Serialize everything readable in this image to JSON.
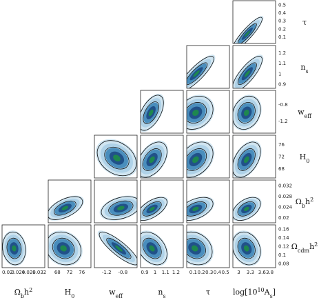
{
  "chart_data": {
    "type": "triangle-contour",
    "parameters": [
      {
        "key": "omegabh2",
        "label": "Ω_b h²",
        "ticks": [
          "0.02",
          "0.024",
          "0.028",
          "0.032"
        ],
        "range": [
          0.018,
          0.034
        ]
      },
      {
        "key": "H0",
        "label": "H_0",
        "ticks": [
          "68",
          "72",
          "76"
        ],
        "range": [
          65,
          79
        ]
      },
      {
        "key": "weff",
        "label": "w_eff",
        "ticks": [
          "-1.2",
          "-0.8"
        ],
        "range": [
          -1.5,
          -0.45
        ]
      },
      {
        "key": "ns",
        "label": "n_s",
        "ticks": [
          "0.9",
          "1",
          "1.1",
          "1.2"
        ],
        "range": [
          0.86,
          1.27
        ]
      },
      {
        "key": "tau",
        "label": "τ",
        "ticks": [
          "0.1",
          "0.2",
          "0.3",
          "0.4",
          "0.5"
        ],
        "range": [
          0.02,
          0.55
        ]
      },
      {
        "key": "logAs",
        "label": "log[10¹⁰A_s]",
        "ticks": [
          "3",
          "3.3",
          "3.6",
          "3.8"
        ],
        "range": [
          2.85,
          3.95
        ]
      }
    ],
    "row_parameters": [
      {
        "key": "tau",
        "label": "τ",
        "ticks": [
          "0.5",
          "0.4",
          "0.3",
          "0.2",
          "0.1"
        ],
        "values": [
          0.5,
          0.4,
          0.3,
          0.2,
          0.1
        ],
        "range": [
          0.02,
          0.55
        ]
      },
      {
        "key": "ns",
        "label": "n_s",
        "ticks": [
          "1.2",
          "1.1",
          "1",
          "0.9"
        ],
        "values": [
          1.2,
          1.1,
          1.0,
          0.9
        ],
        "range": [
          0.86,
          1.27
        ]
      },
      {
        "key": "weff",
        "label": "w_eff",
        "ticks": [
          "-0.8",
          "-1.2"
        ],
        "values": [
          -0.8,
          -1.2
        ],
        "range": [
          -1.5,
          -0.45
        ]
      },
      {
        "key": "H0",
        "label": "H_0",
        "ticks": [
          "76",
          "72",
          "68"
        ],
        "values": [
          76,
          72,
          68
        ],
        "range": [
          65,
          79
        ]
      },
      {
        "key": "omegabh2",
        "label": "Ω_b h²",
        "ticks": [
          "0.032",
          "0.028",
          "0.024",
          "0.02"
        ],
        "values": [
          0.032,
          0.028,
          0.024,
          0.02
        ],
        "range": [
          0.018,
          0.034
        ]
      },
      {
        "key": "omegacdmh2",
        "label": "Ω_cdm h²",
        "ticks": [
          "0.16",
          "0.14",
          "0.12",
          "0.1",
          "0.08"
        ],
        "values": [
          0.16,
          0.14,
          0.12,
          0.1,
          0.08
        ],
        "range": [
          0.07,
          0.17
        ]
      }
    ],
    "x_tick_values": {
      "omegabh2": [
        0.02,
        0.024,
        0.028,
        0.032
      ],
      "H0": [
        68,
        72,
        76
      ],
      "weff": [
        -1.2,
        -0.8
      ],
      "ns": [
        0.9,
        1.0,
        1.1,
        1.2
      ],
      "tau": [
        0.1,
        0.2,
        0.3,
        0.4,
        0.5
      ],
      "logAs": [
        3.0,
        3.3,
        3.6,
        3.8
      ]
    },
    "panels": [
      {
        "row": "tau",
        "col": "logAs",
        "center": [
          3.22,
          0.14
        ],
        "sigma": [
          0.16,
          0.085
        ],
        "corr": 0.9
      },
      {
        "row": "ns",
        "col": "tau",
        "center": [
          0.14,
          1.0
        ],
        "sigma": [
          0.09,
          0.07
        ],
        "corr": 0.85
      },
      {
        "row": "ns",
        "col": "logAs",
        "center": [
          3.22,
          1.0
        ],
        "sigma": [
          0.16,
          0.07
        ],
        "corr": 0.8
      },
      {
        "row": "weff",
        "col": "ns",
        "center": [
          0.96,
          -1.0
        ],
        "sigma": [
          0.05,
          0.18
        ],
        "corr": 0.55
      },
      {
        "row": "weff",
        "col": "tau",
        "center": [
          0.13,
          -1.0
        ],
        "sigma": [
          0.09,
          0.17
        ],
        "corr": 0.2
      },
      {
        "row": "weff",
        "col": "logAs",
        "center": [
          3.2,
          -1.0
        ],
        "sigma": [
          0.15,
          0.17
        ],
        "corr": 0.2
      },
      {
        "row": "H0",
        "col": "weff",
        "center": [
          -0.95,
          71.5
        ],
        "sigma": [
          0.2,
          2.4
        ],
        "corr": -0.3
      },
      {
        "row": "H0",
        "col": "ns",
        "center": [
          0.97,
          71.0
        ],
        "sigma": [
          0.06,
          2.4
        ],
        "corr": 0.45
      },
      {
        "row": "H0",
        "col": "tau",
        "center": [
          0.13,
          71.0
        ],
        "sigma": [
          0.09,
          2.4
        ],
        "corr": 0.35
      },
      {
        "row": "H0",
        "col": "logAs",
        "center": [
          3.2,
          71.0
        ],
        "sigma": [
          0.15,
          2.4
        ],
        "corr": 0.45
      },
      {
        "row": "omegabh2",
        "col": "H0",
        "center": [
          70.5,
          0.0235
        ],
        "sigma": [
          2.4,
          0.0018
        ],
        "corr": 0.55
      },
      {
        "row": "omegabh2",
        "col": "weff",
        "center": [
          -0.85,
          0.0235
        ],
        "sigma": [
          0.2,
          0.0018
        ],
        "corr": 0.35
      },
      {
        "row": "omegabh2",
        "col": "ns",
        "center": [
          0.97,
          0.0232
        ],
        "sigma": [
          0.06,
          0.0018
        ],
        "corr": 0.6
      },
      {
        "row": "omegabh2",
        "col": "tau",
        "center": [
          0.13,
          0.0232
        ],
        "sigma": [
          0.09,
          0.0018
        ],
        "corr": 0.45
      },
      {
        "row": "omegabh2",
        "col": "logAs",
        "center": [
          3.2,
          0.0232
        ],
        "sigma": [
          0.15,
          0.0018
        ],
        "corr": 0.45
      },
      {
        "row": "omegacdmh2",
        "col": "omegabh2",
        "center": [
          0.0225,
          0.115
        ],
        "sigma": [
          0.0018,
          0.016
        ],
        "corr": -0.1
      },
      {
        "row": "omegacdmh2",
        "col": "H0",
        "center": [
          70.0,
          0.115
        ],
        "sigma": [
          2.4,
          0.016
        ],
        "corr": -0.15
      },
      {
        "row": "omegacdmh2",
        "col": "weff",
        "center": [
          -0.9,
          0.115
        ],
        "sigma": [
          0.2,
          0.016
        ],
        "corr": -0.85
      },
      {
        "row": "omegacdmh2",
        "col": "ns",
        "center": [
          0.97,
          0.115
        ],
        "sigma": [
          0.06,
          0.016
        ],
        "corr": -0.35
      },
      {
        "row": "omegacdmh2",
        "col": "tau",
        "center": [
          0.12,
          0.115
        ],
        "sigma": [
          0.09,
          0.016
        ],
        "corr": -0.2
      },
      {
        "row": "omegacdmh2",
        "col": "logAs",
        "center": [
          3.2,
          0.115
        ],
        "sigma": [
          0.15,
          0.016
        ],
        "corr": -0.2
      }
    ],
    "colors": {
      "core": "#1f8a4c",
      "inner": "#1f4e86",
      "mid": "#3f86b8",
      "outer": "#a9cfe6",
      "contour": "#111111"
    },
    "grid": false,
    "legend": "none"
  }
}
